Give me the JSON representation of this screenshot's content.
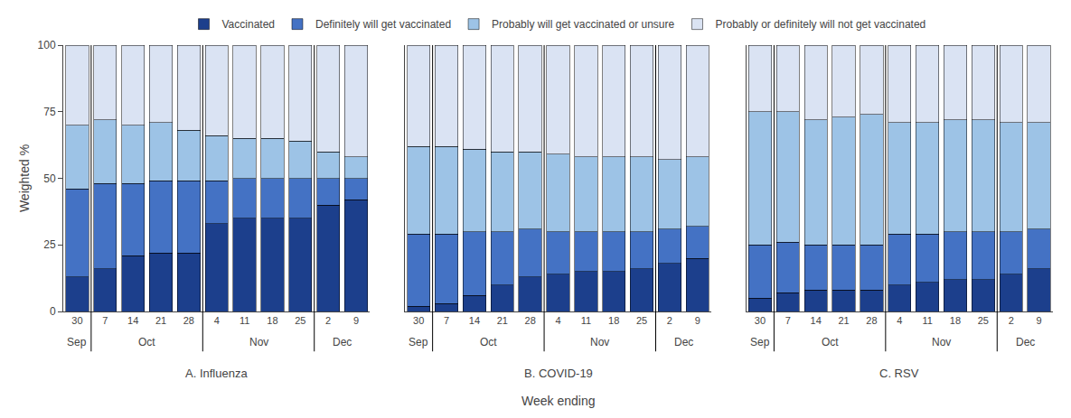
{
  "chart_data": [
    {
      "type": "bar",
      "stacked": true,
      "title": "A. Influenza",
      "ylabel": "Weighted %",
      "categories": [
        "30",
        "7",
        "14",
        "21",
        "28",
        "4",
        "11",
        "18",
        "25",
        "2",
        "9"
      ],
      "annotations": [
        {
          "text": "Sep",
          "x": [
            0,
            0
          ]
        },
        {
          "text": "Oct",
          "x": [
            1,
            4
          ]
        },
        {
          "text": "Nov",
          "x": [
            5,
            8
          ]
        },
        {
          "text": "Dec",
          "x": [
            9,
            10
          ]
        }
      ],
      "series": [
        {
          "name": "Vaccinated",
          "color": "#1c3f8c",
          "values": [
            13,
            16,
            21,
            22,
            22,
            33,
            35,
            35,
            35,
            40,
            42
          ]
        },
        {
          "name": "Definitely will get vaccinated",
          "color": "#4472c4",
          "values": [
            33,
            32,
            27,
            27,
            27,
            16,
            15,
            15,
            15,
            10,
            8
          ]
        },
        {
          "name": "Probably will get vaccinated or unsure",
          "color": "#9dc3e6",
          "values": [
            24,
            24,
            22,
            22,
            19,
            17,
            15,
            15,
            14,
            10,
            8
          ]
        },
        {
          "name": "Probably or definitely will not get vaccinated",
          "color": "#dae3f3",
          "values": [
            30,
            28,
            30,
            29,
            32,
            34,
            35,
            35,
            36,
            40,
            42
          ]
        }
      ],
      "ylim": [
        0,
        100
      ],
      "yticks": [
        0,
        25,
        50,
        75,
        100
      ],
      "grid": false,
      "legend": "top"
    },
    {
      "type": "bar",
      "stacked": true,
      "title": "B. COVID-19",
      "xlabel": "Week ending",
      "categories": [
        "30",
        "7",
        "14",
        "21",
        "28",
        "4",
        "11",
        "18",
        "25",
        "2",
        "9"
      ],
      "annotations": [
        {
          "text": "Sep",
          "x": [
            0,
            0
          ]
        },
        {
          "text": "Oct",
          "x": [
            1,
            4
          ]
        },
        {
          "text": "Nov",
          "x": [
            5,
            8
          ]
        },
        {
          "text": "Dec",
          "x": [
            9,
            10
          ]
        }
      ],
      "series": [
        {
          "name": "Vaccinated",
          "color": "#1c3f8c",
          "values": [
            2,
            3,
            6,
            10,
            13,
            14,
            15,
            15,
            16,
            18,
            20
          ]
        },
        {
          "name": "Definitely will get vaccinated",
          "color": "#4472c4",
          "values": [
            27,
            26,
            24,
            20,
            18,
            16,
            15,
            15,
            14,
            13,
            12
          ]
        },
        {
          "name": "Probably will get vaccinated or unsure",
          "color": "#9dc3e6",
          "values": [
            33,
            33,
            31,
            30,
            29,
            29,
            28,
            28,
            28,
            26,
            26
          ]
        },
        {
          "name": "Probably or definitely will not get vaccinated",
          "color": "#dae3f3",
          "values": [
            38,
            38,
            39,
            40,
            40,
            41,
            42,
            42,
            42,
            43,
            42
          ]
        }
      ],
      "ylim": [
        0,
        100
      ],
      "yticks": [
        0,
        25,
        50,
        75,
        100
      ],
      "grid": false,
      "tick_labels": "x"
    },
    {
      "type": "bar",
      "stacked": true,
      "title": "C. RSV",
      "categories": [
        "30",
        "7",
        "14",
        "21",
        "28",
        "4",
        "11",
        "18",
        "25",
        "2",
        "9"
      ],
      "annotations": [
        {
          "text": "Sep",
          "x": [
            0,
            0
          ]
        },
        {
          "text": "Oct",
          "x": [
            1,
            4
          ]
        },
        {
          "text": "Nov",
          "x": [
            5,
            8
          ]
        },
        {
          "text": "Dec",
          "x": [
            9,
            10
          ]
        }
      ],
      "series": [
        {
          "name": "Vaccinated",
          "color": "#1c3f8c",
          "values": [
            5,
            7,
            8,
            8,
            8,
            10,
            11,
            12,
            12,
            14,
            16
          ]
        },
        {
          "name": "Definitely will get vaccinated",
          "color": "#4472c4",
          "values": [
            20,
            19,
            17,
            17,
            17,
            19,
            18,
            18,
            18,
            16,
            15
          ]
        },
        {
          "name": "Probably will get vaccinated or unsure",
          "color": "#9dc3e6",
          "values": [
            50,
            49,
            47,
            48,
            49,
            42,
            42,
            42,
            42,
            41,
            40
          ]
        },
        {
          "name": "Probably or definitely will not get vaccinated",
          "color": "#dae3f3",
          "values": [
            25,
            25,
            28,
            27,
            26,
            29,
            29,
            28,
            28,
            29,
            29
          ]
        }
      ],
      "ylim": [
        0,
        100
      ],
      "yticks": [
        0,
        25,
        50,
        75,
        100
      ],
      "grid": false,
      "tick_labels": "x"
    }
  ]
}
